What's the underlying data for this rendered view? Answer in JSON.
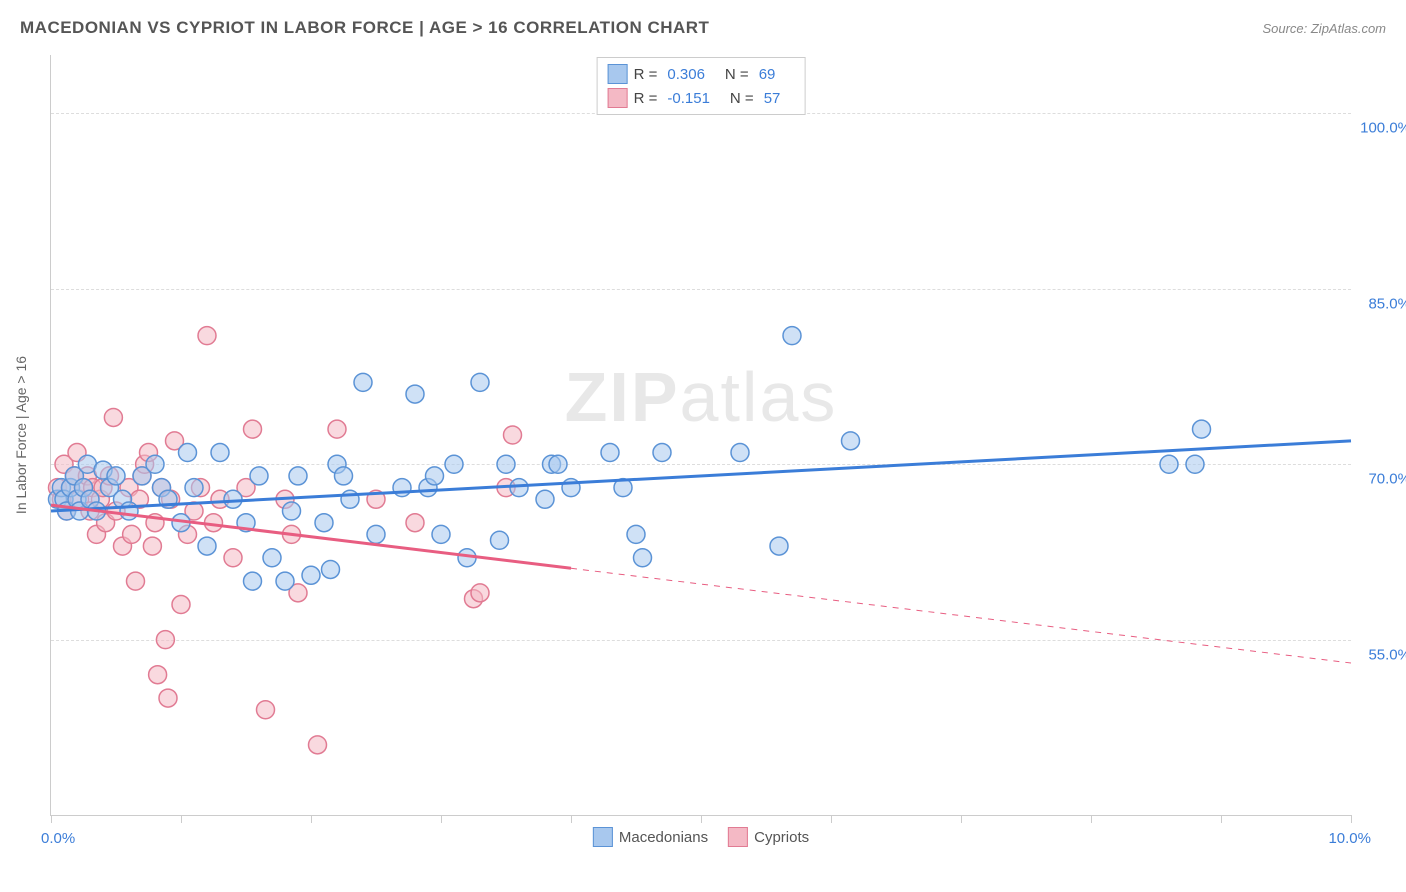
{
  "title": "MACEDONIAN VS CYPRIOT IN LABOR FORCE | AGE > 16 CORRELATION CHART",
  "source": "Source: ZipAtlas.com",
  "watermark_bold": "ZIP",
  "watermark_light": "atlas",
  "chart": {
    "type": "scatter",
    "background_color": "#ffffff",
    "grid_color": "#dddddd",
    "axis_color": "#cccccc",
    "label_color": "#3b7dd8",
    "y_axis_title": "In Labor Force | Age > 16",
    "xlim": [
      0.0,
      10.0
    ],
    "ylim": [
      40.0,
      105.0
    ],
    "x_ticks": [
      0.0,
      1.0,
      2.0,
      3.0,
      4.0,
      5.0,
      6.0,
      7.0,
      8.0,
      9.0,
      10.0
    ],
    "y_gridlines": [
      55.0,
      70.0,
      85.0,
      100.0
    ],
    "y_labels": [
      "55.0%",
      "70.0%",
      "85.0%",
      "100.0%"
    ],
    "x_label_min": "0.0%",
    "x_label_max": "10.0%",
    "marker_radius": 9,
    "marker_opacity": 0.55,
    "line_width_solid": 3,
    "line_width_dashed": 1
  },
  "series": [
    {
      "name": "Macedonians",
      "fill": "#a8c8ee",
      "stroke": "#5b93d6",
      "line_color": "#3b7dd8",
      "R_label": "R =",
      "R": "0.306",
      "N_label": "N =",
      "N": "69",
      "trend": {
        "y_at_xmin": 66.0,
        "y_at_xmax": 72.0,
        "solid_until_x": 10.0
      },
      "points": [
        [
          0.05,
          67
        ],
        [
          0.08,
          68
        ],
        [
          0.1,
          67
        ],
        [
          0.12,
          66
        ],
        [
          0.15,
          68
        ],
        [
          0.18,
          69
        ],
        [
          0.2,
          67
        ],
        [
          0.22,
          66
        ],
        [
          0.25,
          68
        ],
        [
          0.28,
          70
        ],
        [
          0.3,
          67
        ],
        [
          0.35,
          66
        ],
        [
          0.4,
          69.5
        ],
        [
          0.45,
          68
        ],
        [
          0.5,
          69
        ],
        [
          0.55,
          67
        ],
        [
          0.6,
          66
        ],
        [
          0.7,
          69
        ],
        [
          0.8,
          70
        ],
        [
          0.85,
          68
        ],
        [
          0.9,
          67
        ],
        [
          1.0,
          65
        ],
        [
          1.05,
          71
        ],
        [
          1.1,
          68
        ],
        [
          1.2,
          63
        ],
        [
          1.3,
          71
        ],
        [
          1.4,
          67
        ],
        [
          1.5,
          65
        ],
        [
          1.55,
          60
        ],
        [
          1.6,
          69
        ],
        [
          1.7,
          62
        ],
        [
          1.8,
          60
        ],
        [
          1.85,
          66
        ],
        [
          1.9,
          69
        ],
        [
          2.0,
          60.5
        ],
        [
          2.1,
          65
        ],
        [
          2.15,
          61
        ],
        [
          2.2,
          70
        ],
        [
          2.25,
          69
        ],
        [
          2.3,
          67
        ],
        [
          2.4,
          77
        ],
        [
          2.5,
          64
        ],
        [
          2.7,
          68
        ],
        [
          2.8,
          76
        ],
        [
          2.9,
          68
        ],
        [
          2.95,
          69
        ],
        [
          3.0,
          64
        ],
        [
          3.1,
          70
        ],
        [
          3.2,
          62
        ],
        [
          3.3,
          77
        ],
        [
          3.45,
          63.5
        ],
        [
          3.5,
          70
        ],
        [
          3.6,
          68
        ],
        [
          3.8,
          67
        ],
        [
          3.85,
          70
        ],
        [
          3.9,
          70
        ],
        [
          4.0,
          68
        ],
        [
          4.3,
          71
        ],
        [
          4.4,
          68
        ],
        [
          4.5,
          64
        ],
        [
          4.55,
          62
        ],
        [
          4.7,
          71
        ],
        [
          5.3,
          71
        ],
        [
          5.6,
          63
        ],
        [
          5.7,
          81
        ],
        [
          6.15,
          72
        ],
        [
          8.6,
          70
        ],
        [
          8.8,
          70
        ],
        [
          8.85,
          73
        ]
      ]
    },
    {
      "name": "Cypriots",
      "fill": "#f4b9c5",
      "stroke": "#e17b93",
      "line_color": "#e85d81",
      "R_label": "R =",
      "R": "-0.151",
      "N_label": "N =",
      "N": "57",
      "trend": {
        "y_at_xmin": 66.5,
        "y_at_xmax": 53.0,
        "solid_until_x": 4.0
      },
      "points": [
        [
          0.05,
          68
        ],
        [
          0.08,
          67
        ],
        [
          0.1,
          70
        ],
        [
          0.12,
          66
        ],
        [
          0.15,
          68
        ],
        [
          0.18,
          69
        ],
        [
          0.2,
          71
        ],
        [
          0.22,
          67
        ],
        [
          0.25,
          68
        ],
        [
          0.28,
          69
        ],
        [
          0.3,
          66
        ],
        [
          0.32,
          68
        ],
        [
          0.35,
          64
        ],
        [
          0.38,
          67
        ],
        [
          0.4,
          68
        ],
        [
          0.42,
          65
        ],
        [
          0.45,
          69
        ],
        [
          0.48,
          74
        ],
        [
          0.5,
          66
        ],
        [
          0.55,
          63
        ],
        [
          0.6,
          68
        ],
        [
          0.62,
          64
        ],
        [
          0.65,
          60
        ],
        [
          0.68,
          67
        ],
        [
          0.7,
          69
        ],
        [
          0.72,
          70
        ],
        [
          0.75,
          71
        ],
        [
          0.78,
          63
        ],
        [
          0.8,
          65
        ],
        [
          0.82,
          52
        ],
        [
          0.85,
          68
        ],
        [
          0.88,
          55
        ],
        [
          0.9,
          50
        ],
        [
          0.92,
          67
        ],
        [
          0.95,
          72
        ],
        [
          1.0,
          58
        ],
        [
          1.05,
          64
        ],
        [
          1.1,
          66
        ],
        [
          1.15,
          68
        ],
        [
          1.2,
          81
        ],
        [
          1.25,
          65
        ],
        [
          1.3,
          67
        ],
        [
          1.4,
          62
        ],
        [
          1.5,
          68
        ],
        [
          1.55,
          73
        ],
        [
          1.65,
          49
        ],
        [
          1.8,
          67
        ],
        [
          1.85,
          64
        ],
        [
          1.9,
          59
        ],
        [
          2.05,
          46
        ],
        [
          2.2,
          73
        ],
        [
          2.5,
          67
        ],
        [
          2.8,
          65
        ],
        [
          3.25,
          58.5
        ],
        [
          3.3,
          59
        ],
        [
          3.5,
          68
        ],
        [
          3.55,
          72.5
        ]
      ]
    }
  ],
  "legend_bottom": [
    {
      "label": "Macedonians",
      "fill": "#a8c8ee",
      "stroke": "#5b93d6"
    },
    {
      "label": "Cypriots",
      "fill": "#f4b9c5",
      "stroke": "#e17b93"
    }
  ]
}
